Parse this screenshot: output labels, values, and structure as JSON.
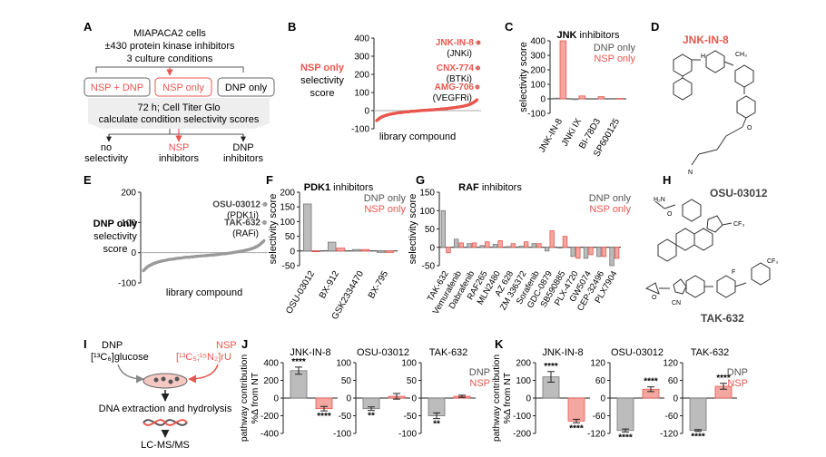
{
  "colors": {
    "nsp": "#e8574f",
    "nsp_fill": "#f4a6a0",
    "dnp_fill": "#bcbcbc",
    "dark": "#222222",
    "grey_dot": "#9a9a9a",
    "box_fill": "#eeeeee"
  },
  "panel_A": {
    "letter": "A",
    "header": [
      "MIAPACA2 cells",
      "±430 protein kinase inhibitors",
      "3 culture conditions"
    ],
    "conditions": [
      "NSP + DNP",
      "NSP only",
      "DNP only"
    ],
    "step": [
      "72 h; Cell Titer Glo",
      "calculate condition selectivity scores"
    ],
    "outcomes": [
      [
        "no",
        "selectivity"
      ],
      [
        "NSP",
        "inhibitors"
      ],
      [
        "DNP",
        "inhibitors"
      ]
    ]
  },
  "panel_B": {
    "letter": "B",
    "ylabel": [
      "NSP only",
      "selectivity",
      "score"
    ],
    "xlabel": "library compound",
    "chart_data": {
      "type": "scatter",
      "ylim": [
        -100,
        400
      ],
      "yticks": [
        -100,
        0,
        100,
        200,
        300,
        400
      ]
    },
    "annotations": [
      {
        "name": "JNK-IN-8",
        "target": "(JNKi)",
        "y": 375
      },
      {
        "name": "CNX-774",
        "target": "(BTKi)",
        "y": 235
      },
      {
        "name": "AMG-706",
        "target": "(VEGFRi)",
        "y": 130
      }
    ]
  },
  "panel_C": {
    "letter": "C",
    "title_bold": "JNK",
    "title_rest": " inhibitors",
    "legend": [
      "DNP only",
      "NSP only"
    ],
    "ylabel": "selectivity score",
    "chart_data": {
      "type": "bar",
      "categories": [
        "JNK-IN-8",
        "JNKi IX",
        "BI-78D3",
        "SP600125"
      ],
      "series": [
        {
          "name": "DNP only",
          "values": [
            5,
            -5,
            2,
            3
          ]
        },
        {
          "name": "NSP only",
          "values": [
            400,
            20,
            15,
            3
          ]
        }
      ],
      "ylim": [
        -100,
        400
      ],
      "yticks": [
        -100,
        0,
        100,
        200,
        300,
        400
      ]
    }
  },
  "panel_D": {
    "letter": "D",
    "compound": "JNK-IN-8"
  },
  "panel_E": {
    "letter": "E",
    "ylabel": [
      "DNP only",
      "selectivity",
      "score"
    ],
    "xlabel": "library compound",
    "chart_data": {
      "type": "scatter",
      "ylim": [
        -100,
        200
      ],
      "yticks": [
        -100,
        0,
        100,
        200
      ]
    },
    "annotations": [
      {
        "name": "OSU-03012",
        "target": "(PDK1i)",
        "y": 160
      },
      {
        "name": "TAK-632",
        "target": "(RAFi)",
        "y": 100
      }
    ]
  },
  "panel_F": {
    "letter": "F",
    "title_bold": "PDK1",
    "title_rest": " inhibitors",
    "legend": [
      "DNP only",
      "NSP only"
    ],
    "ylabel": "selectivity score",
    "chart_data": {
      "type": "bar",
      "categories": [
        "OSU-03012",
        "BX-912",
        "GSK2334470",
        "BX-795"
      ],
      "series": [
        {
          "name": "DNP only",
          "values": [
            160,
            30,
            5,
            -5
          ]
        },
        {
          "name": "NSP only",
          "values": [
            0,
            10,
            5,
            -5
          ]
        }
      ],
      "ylim": [
        -50,
        200
      ],
      "yticks": [
        -50,
        0,
        50,
        100,
        150,
        200
      ]
    }
  },
  "panel_G": {
    "letter": "G",
    "title_bold": "RAF",
    "title_rest": " inhibitors",
    "legend": [
      "DNP only",
      "NSP only"
    ],
    "ylabel": "selectivity score",
    "chart_data": {
      "type": "bar",
      "categories": [
        "TAK-632",
        "Vemurafenib",
        "Dabrafenib",
        "RAF265",
        "MLN2480",
        "AZ 628",
        "ZM 336372",
        "Sorafenib",
        "GDC-0879",
        "SB590885",
        "PLX-4720",
        "GW5074",
        "CEP-32496",
        "PLX7904"
      ],
      "series": [
        {
          "name": "DNP only",
          "values": [
            100,
            22,
            10,
            5,
            8,
            2,
            3,
            10,
            -10,
            0,
            -25,
            -30,
            -25,
            -50
          ]
        },
        {
          "name": "NSP only",
          "values": [
            -15,
            12,
            12,
            15,
            18,
            10,
            15,
            10,
            45,
            30,
            -30,
            -20,
            -25,
            -30
          ]
        }
      ],
      "ylim": [
        -50,
        150
      ],
      "yticks": [
        -50,
        0,
        50,
        100,
        150
      ]
    }
  },
  "panel_H": {
    "letter": "H",
    "compounds": [
      "OSU-03012",
      "TAK-632"
    ]
  },
  "panel_I": {
    "letter": "I",
    "dnp": {
      "label": "DNP",
      "tracer": "[¹³C₆]glucose"
    },
    "nsp": {
      "label": "NSP",
      "tracer": "[¹³C₅;¹⁵N₂]rU"
    },
    "step1": "DNA extraction and hydrolysis",
    "step2": "LC-MS/MS"
  },
  "panel_J": {
    "letter": "J",
    "ylabel": [
      "pathway contribution",
      "%Δ from NT"
    ],
    "legend": [
      "DNP",
      "NSP"
    ],
    "charts": [
      {
        "title": "JNK-IN-8",
        "type": "bar",
        "categories": [
          "DNP",
          "NSP"
        ],
        "values": [
          310,
          -120
        ],
        "errors": [
          40,
          25
        ],
        "sig": [
          "****",
          "****"
        ],
        "ylim": [
          -400,
          400
        ],
        "yticks": [
          -400,
          -200,
          0,
          200,
          400
        ]
      },
      {
        "title": "OSU-03012",
        "type": "bar",
        "categories": [
          "DNP",
          "NSP"
        ],
        "values": [
          -30,
          5
        ],
        "errors": [
          5,
          8
        ],
        "sig": [
          "**",
          ""
        ],
        "ylim": [
          -100,
          100
        ],
        "yticks": [
          -100,
          -50,
          0,
          50,
          100
        ]
      },
      {
        "title": "TAK-632",
        "type": "bar",
        "categories": [
          "DNP",
          "NSP"
        ],
        "values": [
          -50,
          5
        ],
        "errors": [
          8,
          3
        ],
        "sig": [
          "**",
          ""
        ],
        "ylim": [
          -100,
          100
        ],
        "yticks": [
          -100,
          -50,
          0,
          50,
          100
        ]
      }
    ]
  },
  "panel_K": {
    "letter": "K",
    "ylabel": [
      "pathway contribution",
      "%Δ from NT"
    ],
    "legend": [
      "DNP",
      "NSP"
    ],
    "charts": [
      {
        "title": "JNK-IN-8",
        "type": "bar",
        "categories": [
          "DNP",
          "NSP"
        ],
        "values": [
          120,
          -130
        ],
        "errors": [
          30,
          10
        ],
        "sig": [
          "****",
          "****"
        ],
        "ylim": [
          -200,
          200
        ],
        "yticks": [
          -200,
          -100,
          0,
          100,
          200
        ]
      },
      {
        "title": "OSU-03012",
        "type": "bar",
        "categories": [
          "DNP",
          "NSP"
        ],
        "values": [
          -110,
          30
        ],
        "errors": [
          5,
          8
        ],
        "sig": [
          "****",
          "****"
        ],
        "ylim": [
          -120,
          120
        ],
        "yticks": [
          -120,
          -60,
          0,
          60,
          120
        ]
      },
      {
        "title": "TAK-632",
        "type": "bar",
        "categories": [
          "DNP",
          "NSP"
        ],
        "values": [
          -110,
          40
        ],
        "errors": [
          3,
          10
        ],
        "sig": [
          "****",
          "****"
        ],
        "ylim": [
          -120,
          120
        ],
        "yticks": [
          -120,
          -60,
          0,
          60,
          120
        ]
      }
    ]
  }
}
